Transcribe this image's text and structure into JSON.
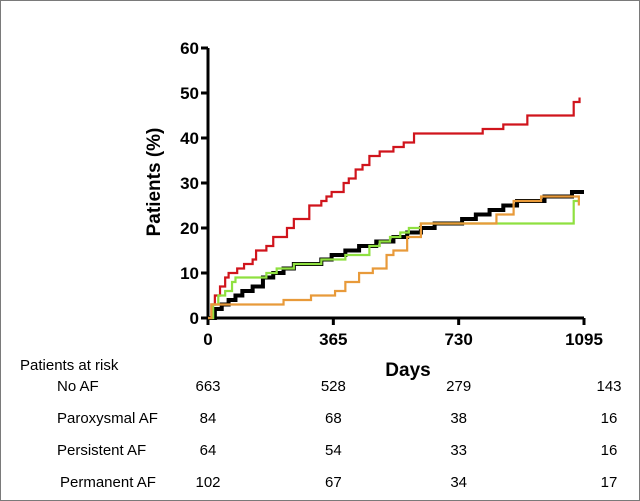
{
  "chart_data": {
    "type": "line",
    "subtype": "kaplan-meier",
    "title": "",
    "xlabel": "Days",
    "ylabel": "Patients (%)",
    "xlim": [
      0,
      1095
    ],
    "ylim": [
      0,
      60
    ],
    "xticks": [
      0,
      365,
      730,
      1095
    ],
    "yticks": [
      0,
      10,
      20,
      30,
      40,
      50,
      60
    ],
    "grid": false,
    "legend": "none",
    "series": [
      {
        "color": "#d0141c",
        "points": [
          [
            0,
            0
          ],
          [
            10,
            3
          ],
          [
            20,
            5
          ],
          [
            35,
            7
          ],
          [
            50,
            9
          ],
          [
            60,
            10
          ],
          [
            85,
            11
          ],
          [
            105,
            12
          ],
          [
            130,
            13
          ],
          [
            140,
            15
          ],
          [
            170,
            16
          ],
          [
            190,
            18
          ],
          [
            230,
            20
          ],
          [
            250,
            22
          ],
          [
            295,
            25
          ],
          [
            330,
            26
          ],
          [
            345,
            27
          ],
          [
            360,
            28
          ],
          [
            395,
            30
          ],
          [
            410,
            31
          ],
          [
            430,
            33
          ],
          [
            450,
            34
          ],
          [
            470,
            36
          ],
          [
            500,
            37
          ],
          [
            540,
            38
          ],
          [
            570,
            39
          ],
          [
            600,
            41
          ],
          [
            710,
            41
          ],
          [
            800,
            42
          ],
          [
            860,
            43
          ],
          [
            930,
            45
          ],
          [
            1065,
            46
          ],
          [
            1065,
            48
          ],
          [
            1082,
            49
          ],
          [
            1082,
            49
          ]
        ]
      },
      {
        "color": "#000000",
        "points": [
          [
            0,
            0
          ],
          [
            20,
            2
          ],
          [
            40,
            3
          ],
          [
            60,
            4
          ],
          [
            80,
            5
          ],
          [
            100,
            6
          ],
          [
            130,
            7
          ],
          [
            160,
            9
          ],
          [
            190,
            10
          ],
          [
            220,
            11
          ],
          [
            250,
            12
          ],
          [
            290,
            12
          ],
          [
            330,
            13
          ],
          [
            360,
            14
          ],
          [
            400,
            15
          ],
          [
            440,
            16
          ],
          [
            490,
            17
          ],
          [
            540,
            18
          ],
          [
            580,
            19
          ],
          [
            620,
            20
          ],
          [
            660,
            21
          ],
          [
            700,
            21
          ],
          [
            740,
            22
          ],
          [
            780,
            23
          ],
          [
            820,
            24
          ],
          [
            860,
            25
          ],
          [
            900,
            26
          ],
          [
            940,
            26
          ],
          [
            980,
            27
          ],
          [
            1020,
            27
          ],
          [
            1060,
            28
          ],
          [
            1095,
            28
          ]
        ]
      },
      {
        "color": "#8fe040",
        "points": [
          [
            0,
            0
          ],
          [
            15,
            3
          ],
          [
            30,
            5
          ],
          [
            50,
            6
          ],
          [
            70,
            8
          ],
          [
            80,
            9
          ],
          [
            110,
            9
          ],
          [
            170,
            10
          ],
          [
            200,
            11
          ],
          [
            250,
            12
          ],
          [
            290,
            12
          ],
          [
            330,
            13
          ],
          [
            350,
            13
          ],
          [
            380,
            13
          ],
          [
            400,
            14
          ],
          [
            440,
            14
          ],
          [
            470,
            16
          ],
          [
            500,
            17
          ],
          [
            530,
            18
          ],
          [
            560,
            19
          ],
          [
            585,
            20
          ],
          [
            620,
            21
          ],
          [
            700,
            21
          ],
          [
            800,
            21
          ],
          [
            900,
            21
          ],
          [
            1000,
            21
          ],
          [
            1060,
            21
          ],
          [
            1065,
            26
          ],
          [
            1080,
            26
          ]
        ]
      },
      {
        "color": "#e89a3a",
        "points": [
          [
            0,
            0
          ],
          [
            10,
            3
          ],
          [
            60,
            3
          ],
          [
            200,
            3
          ],
          [
            220,
            4
          ],
          [
            300,
            5
          ],
          [
            370,
            6
          ],
          [
            400,
            8
          ],
          [
            440,
            10
          ],
          [
            480,
            11
          ],
          [
            520,
            14
          ],
          [
            540,
            15
          ],
          [
            580,
            18
          ],
          [
            620,
            21
          ],
          [
            700,
            21
          ],
          [
            750,
            21
          ],
          [
            800,
            21
          ],
          [
            840,
            23
          ],
          [
            890,
            26
          ],
          [
            920,
            26
          ],
          [
            950,
            26
          ],
          [
            970,
            27
          ],
          [
            1000,
            27
          ],
          [
            1040,
            27
          ],
          [
            1065,
            27
          ],
          [
            1080,
            25
          ]
        ]
      }
    ],
    "risk_table": {
      "title": "Patients at risk",
      "columns": [
        0,
        365,
        730,
        1095
      ],
      "rows": [
        {
          "label": "No AF",
          "values": [
            663,
            528,
            279,
            143
          ]
        },
        {
          "label": "Paroxysmal AF",
          "values": [
            84,
            68,
            38,
            16
          ]
        },
        {
          "label": "Persistent AF",
          "values": [
            64,
            54,
            33,
            16
          ]
        },
        {
          "label": "Permanent AF",
          "values": [
            102,
            67,
            34,
            17
          ]
        }
      ]
    }
  }
}
